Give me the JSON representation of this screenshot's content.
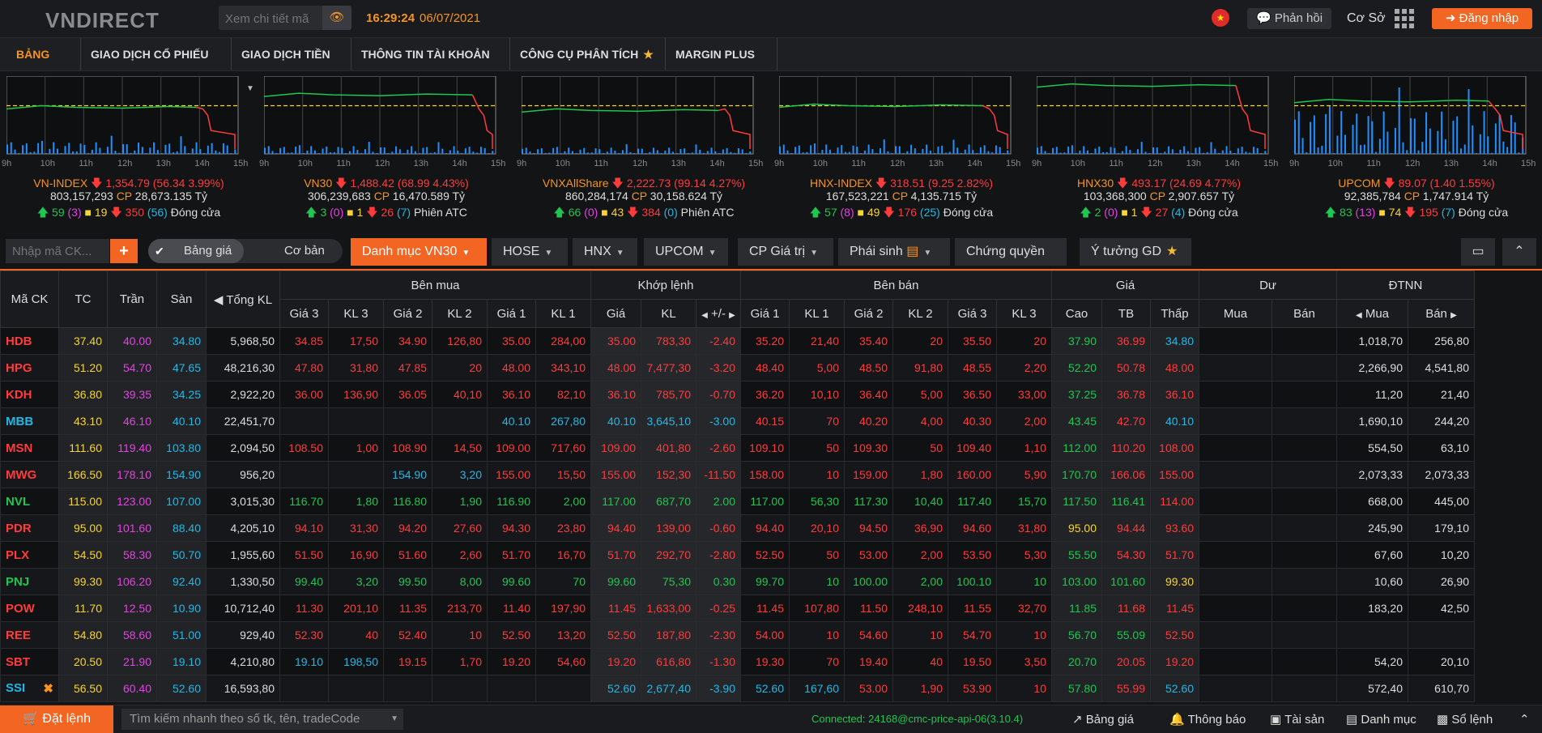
{
  "header": {
    "logo": "VNDIRECT",
    "search_placeholder": "Xem chi tiết mã",
    "time": "16:29:24",
    "date": "06/07/2021",
    "feedback_label": "Phản hồi",
    "mode_label": "Cơ Sở",
    "login_label": "Đăng nhập",
    "flag_icon": "vietnam-flag-icon"
  },
  "menu": [
    {
      "label": "BẢNG GIÁ",
      "active": true
    },
    {
      "label": "GIAO DỊCH CỔ PHIẾU"
    },
    {
      "label": "GIAO DỊCH TIỀN"
    },
    {
      "label": "THÔNG TIN TÀI KHOẢN"
    },
    {
      "label": "CÔNG CỤ PHÂN TÍCH"
    },
    {
      "label": "MARGIN PLUS"
    }
  ],
  "indices": [
    {
      "name": "VN-INDEX",
      "value": "1,354.79 (56.34 3.99%)",
      "vol": "803,157,293",
      "vol_unit": "CP",
      "amt": "28,673.135 Tỷ",
      "up": "59",
      "up_ceil": "(3)",
      "flat": "19",
      "down": "350",
      "down_floor": "(56)",
      "status": "Đóng cửa"
    },
    {
      "name": "VN30",
      "value": "1,488.42 (68.99 4.43%)",
      "vol": "306,239,683",
      "vol_unit": "CP",
      "amt": "16,470.589 Tỷ",
      "up": "3",
      "up_ceil": "(0)",
      "flat": "1",
      "down": "26",
      "down_floor": "(7)",
      "status": "Phiên ATC"
    },
    {
      "name": "VNXAllShare",
      "value": "2,222.73 (99.14 4.27%)",
      "vol": "860,284,174",
      "vol_unit": "CP",
      "amt": "30,158.624 Tỷ",
      "up": "66",
      "up_ceil": "(0)",
      "flat": "43",
      "down": "384",
      "down_floor": "(0)",
      "status": "Phiên ATC"
    },
    {
      "name": "HNX-INDEX",
      "value": "318.51 (9.25 2.82%)",
      "vol": "167,523,221",
      "vol_unit": "CP",
      "amt": "4,135.715 Tỷ",
      "up": "57",
      "up_ceil": "(8)",
      "flat": "49",
      "down": "176",
      "down_floor": "(25)",
      "status": "Đóng cửa"
    },
    {
      "name": "HNX30",
      "value": "493.17 (24.69 4.77%)",
      "vol": "103,368,300",
      "vol_unit": "CP",
      "amt": "2,907.657 Tỷ",
      "up": "2",
      "up_ceil": "(0)",
      "flat": "1",
      "down": "27",
      "down_floor": "(4)",
      "status": "Đóng cửa"
    },
    {
      "name": "UPCOM",
      "value": "89.07 (1.40 1.55%)",
      "vol": "92,385,784",
      "vol_unit": "CP",
      "amt": "1,747.914 Tỷ",
      "up": "83",
      "up_ceil": "(13)",
      "flat": "74",
      "down": "195",
      "down_floor": "(7)",
      "status": "Đóng cửa"
    }
  ],
  "hours": [
    "9h",
    "10h",
    "11h",
    "12h",
    "13h",
    "14h",
    "15h"
  ],
  "toolbar": {
    "ck_placeholder": "Nhập mã CK...",
    "toggle_on": "Bảng giá",
    "toggle_off": "Cơ bản",
    "tabs": [
      "Danh mục VN30",
      "HOSE",
      "HNX",
      "UPCOM",
      "CP Giá trị",
      "Phái sinh",
      "Chứng quyền",
      "Ý tưởng GD"
    ]
  },
  "board": {
    "group_headers": {
      "ben_mua": "Bên mua",
      "khop_lenh": "Khớp lệnh",
      "ben_ban": "Bên bán",
      "gia": "Giá",
      "du": "Dư",
      "dtnn": "ĐTNN"
    },
    "col_headers": {
      "ma": "Mã CK",
      "tc": "TC",
      "tran": "Trần",
      "san": "Sàn",
      "tkl": "Tổng KL",
      "g3": "Giá 3",
      "kl3": "KL 3",
      "g2": "Giá 2",
      "kl2": "KL 2",
      "g1": "Giá 1",
      "kl1": "KL 1",
      "gia": "Giá",
      "kl": "KL",
      "pm": "+/-",
      "cao": "Cao",
      "tb": "TB",
      "thap": "Thấp",
      "mua": "Mua",
      "ban": "Bán"
    },
    "rows": [
      {
        "ma": "HDB",
        "c": "r",
        "tc": "37.40",
        "tran": "40.00",
        "san": "34.80",
        "tkl": "5,968,50",
        "b": [
          [
            "34.85",
            "17,50",
            "r"
          ],
          [
            "34.90",
            "126,80",
            "r"
          ],
          [
            "35.00",
            "284,00",
            "r"
          ]
        ],
        "k": [
          "35.00",
          "783,30",
          "-2.40",
          "r"
        ],
        "s": [
          [
            "35.20",
            "21,40",
            "r"
          ],
          [
            "35.40",
            "20",
            "r"
          ],
          [
            "35.50",
            "20",
            "r"
          ]
        ],
        "h": [
          "37.90",
          "g"
        ],
        "t": [
          "36.99",
          "r"
        ],
        "l": [
          "34.80",
          "c"
        ],
        "dm": "",
        "db": "",
        "nm": "1,018,70",
        "nb": "256,80"
      },
      {
        "ma": "HPG",
        "c": "r",
        "tc": "51.20",
        "tran": "54.70",
        "san": "47.65",
        "tkl": "48,216,30",
        "b": [
          [
            "47.80",
            "31,80",
            "r"
          ],
          [
            "47.85",
            "20",
            "r"
          ],
          [
            "48.00",
            "343,10",
            "r"
          ]
        ],
        "k": [
          "48.00",
          "7,477,30",
          "-3.20",
          "r"
        ],
        "s": [
          [
            "48.40",
            "5,00",
            "r"
          ],
          [
            "48.50",
            "91,80",
            "r"
          ],
          [
            "48.55",
            "2,20",
            "r"
          ]
        ],
        "h": [
          "52.20",
          "g"
        ],
        "t": [
          "50.78",
          "r"
        ],
        "l": [
          "48.00",
          "r"
        ],
        "dm": "",
        "db": "",
        "nm": "2,266,90",
        "nb": "4,541,80"
      },
      {
        "ma": "KDH",
        "c": "r",
        "tc": "36.80",
        "tran": "39.35",
        "san": "34.25",
        "tkl": "2,922,20",
        "b": [
          [
            "36.00",
            "136,90",
            "r"
          ],
          [
            "36.05",
            "40,10",
            "r"
          ],
          [
            "36.10",
            "82,10",
            "r"
          ]
        ],
        "k": [
          "36.10",
          "785,70",
          "-0.70",
          "r"
        ],
        "s": [
          [
            "36.20",
            "10,10",
            "r"
          ],
          [
            "36.40",
            "5,00",
            "r"
          ],
          [
            "36.50",
            "33,00",
            "r"
          ]
        ],
        "h": [
          "37.25",
          "g"
        ],
        "t": [
          "36.78",
          "r"
        ],
        "l": [
          "36.10",
          "r"
        ],
        "dm": "",
        "db": "",
        "nm": "11,20",
        "nb": "21,40"
      },
      {
        "ma": "MBB",
        "c": "c",
        "tc": "43.10",
        "tran": "46.10",
        "san": "40.10",
        "tkl": "22,451,70",
        "b": [
          [
            "",
            "",
            ""
          ],
          [
            "",
            "",
            ""
          ],
          [
            "40.10",
            "267,80",
            "c"
          ]
        ],
        "k": [
          "40.10",
          "3,645,10",
          "-3.00",
          "c"
        ],
        "s": [
          [
            "40.15",
            "70",
            "r"
          ],
          [
            "40.20",
            "4,00",
            "r"
          ],
          [
            "40.30",
            "2,00",
            "r"
          ]
        ],
        "h": [
          "43.45",
          "g"
        ],
        "t": [
          "42.70",
          "r"
        ],
        "l": [
          "40.10",
          "c"
        ],
        "dm": "",
        "db": "",
        "nm": "1,690,10",
        "nb": "244,20"
      },
      {
        "ma": "MSN",
        "c": "r",
        "tc": "111.60",
        "tran": "119.40",
        "san": "103.80",
        "tkl": "2,094,50",
        "b": [
          [
            "108.50",
            "1,00",
            "r"
          ],
          [
            "108.90",
            "14,50",
            "r"
          ],
          [
            "109.00",
            "717,60",
            "r"
          ]
        ],
        "k": [
          "109.00",
          "401,80",
          "-2.60",
          "r"
        ],
        "s": [
          [
            "109.10",
            "50",
            "r"
          ],
          [
            "109.30",
            "50",
            "r"
          ],
          [
            "109.40",
            "1,10",
            "r"
          ]
        ],
        "h": [
          "112.00",
          "g"
        ],
        "t": [
          "110.20",
          "r"
        ],
        "l": [
          "108.00",
          "r"
        ],
        "dm": "",
        "db": "",
        "nm": "554,50",
        "nb": "63,10"
      },
      {
        "ma": "MWG",
        "c": "r",
        "tc": "166.50",
        "tran": "178.10",
        "san": "154.90",
        "tkl": "956,20",
        "b": [
          [
            "",
            "",
            ""
          ],
          [
            "154.90",
            "3,20",
            "c"
          ],
          [
            "155.00",
            "15,50",
            "r"
          ]
        ],
        "k": [
          "155.00",
          "152,30",
          "-11.50",
          "r"
        ],
        "s": [
          [
            "158.00",
            "10",
            "r"
          ],
          [
            "159.00",
            "1,80",
            "r"
          ],
          [
            "160.00",
            "5,90",
            "r"
          ]
        ],
        "h": [
          "170.70",
          "g"
        ],
        "t": [
          "166.06",
          "r"
        ],
        "l": [
          "155.00",
          "r"
        ],
        "dm": "",
        "db": "",
        "nm": "2,073,33",
        "nb": "2,073,33"
      },
      {
        "ma": "NVL",
        "c": "g",
        "tc": "115.00",
        "tran": "123.00",
        "san": "107.00",
        "tkl": "3,015,30",
        "b": [
          [
            "116.70",
            "1,80",
            "g"
          ],
          [
            "116.80",
            "1,90",
            "g"
          ],
          [
            "116.90",
            "2,00",
            "g"
          ]
        ],
        "k": [
          "117.00",
          "687,70",
          "2.00",
          "g"
        ],
        "s": [
          [
            "117.00",
            "56,30",
            "g"
          ],
          [
            "117.30",
            "10,40",
            "g"
          ],
          [
            "117.40",
            "15,70",
            "g"
          ]
        ],
        "h": [
          "117.50",
          "g"
        ],
        "t": [
          "116.41",
          "g"
        ],
        "l": [
          "114.00",
          "r"
        ],
        "dm": "",
        "db": "",
        "nm": "668,00",
        "nb": "445,00"
      },
      {
        "ma": "PDR",
        "c": "r",
        "tc": "95.00",
        "tran": "101.60",
        "san": "88.40",
        "tkl": "4,205,10",
        "b": [
          [
            "94.10",
            "31,30",
            "r"
          ],
          [
            "94.20",
            "27,60",
            "r"
          ],
          [
            "94.30",
            "23,80",
            "r"
          ]
        ],
        "k": [
          "94.40",
          "139,00",
          "-0.60",
          "r"
        ],
        "s": [
          [
            "94.40",
            "20,10",
            "r"
          ],
          [
            "94.50",
            "36,90",
            "r"
          ],
          [
            "94.60",
            "31,80",
            "r"
          ]
        ],
        "h": [
          "95.00",
          "y"
        ],
        "t": [
          "94.44",
          "r"
        ],
        "l": [
          "93.60",
          "r"
        ],
        "dm": "",
        "db": "",
        "nm": "245,90",
        "nb": "179,10"
      },
      {
        "ma": "PLX",
        "c": "r",
        "tc": "54.50",
        "tran": "58.30",
        "san": "50.70",
        "tkl": "1,955,60",
        "b": [
          [
            "51.50",
            "16,90",
            "r"
          ],
          [
            "51.60",
            "2,60",
            "r"
          ],
          [
            "51.70",
            "16,70",
            "r"
          ]
        ],
        "k": [
          "51.70",
          "292,70",
          "-2.80",
          "r"
        ],
        "s": [
          [
            "52.50",
            "50",
            "r"
          ],
          [
            "53.00",
            "2,00",
            "r"
          ],
          [
            "53.50",
            "5,30",
            "r"
          ]
        ],
        "h": [
          "55.50",
          "g"
        ],
        "t": [
          "54.30",
          "r"
        ],
        "l": [
          "51.70",
          "r"
        ],
        "dm": "",
        "db": "",
        "nm": "67,60",
        "nb": "10,20"
      },
      {
        "ma": "PNJ",
        "c": "g",
        "tc": "99.30",
        "tran": "106.20",
        "san": "92.40",
        "tkl": "1,330,50",
        "b": [
          [
            "99.40",
            "3,20",
            "g"
          ],
          [
            "99.50",
            "8,00",
            "g"
          ],
          [
            "99.60",
            "70",
            "g"
          ]
        ],
        "k": [
          "99.60",
          "75,30",
          "0.30",
          "g"
        ],
        "s": [
          [
            "99.70",
            "10",
            "g"
          ],
          [
            "100.00",
            "2,00",
            "g"
          ],
          [
            "100.10",
            "10",
            "g"
          ]
        ],
        "h": [
          "103.00",
          "g"
        ],
        "t": [
          "101.60",
          "g"
        ],
        "l": [
          "99.30",
          "y"
        ],
        "dm": "",
        "db": "",
        "nm": "10,60",
        "nb": "26,90"
      },
      {
        "ma": "POW",
        "c": "r",
        "tc": "11.70",
        "tran": "12.50",
        "san": "10.90",
        "tkl": "10,712,40",
        "b": [
          [
            "11.30",
            "201,10",
            "r"
          ],
          [
            "11.35",
            "213,70",
            "r"
          ],
          [
            "11.40",
            "197,90",
            "r"
          ]
        ],
        "k": [
          "11.45",
          "1,633,00",
          "-0.25",
          "r"
        ],
        "s": [
          [
            "11.45",
            "107,80",
            "r"
          ],
          [
            "11.50",
            "248,10",
            "r"
          ],
          [
            "11.55",
            "32,70",
            "r"
          ]
        ],
        "h": [
          "11.85",
          "g"
        ],
        "t": [
          "11.68",
          "r"
        ],
        "l": [
          "11.45",
          "r"
        ],
        "dm": "",
        "db": "",
        "nm": "183,20",
        "nb": "42,50"
      },
      {
        "ma": "REE",
        "c": "r",
        "tc": "54.80",
        "tran": "58.60",
        "san": "51.00",
        "tkl": "929,40",
        "b": [
          [
            "52.30",
            "40",
            "r"
          ],
          [
            "52.40",
            "10",
            "r"
          ],
          [
            "52.50",
            "13,20",
            "r"
          ]
        ],
        "k": [
          "52.50",
          "187,80",
          "-2.30",
          "r"
        ],
        "s": [
          [
            "54.00",
            "10",
            "r"
          ],
          [
            "54.60",
            "10",
            "r"
          ],
          [
            "54.70",
            "10",
            "r"
          ]
        ],
        "h": [
          "56.70",
          "g"
        ],
        "t": [
          "55.09",
          "g"
        ],
        "l": [
          "52.50",
          "r"
        ],
        "dm": "",
        "db": "",
        "nm": "",
        "nb": ""
      },
      {
        "ma": "SBT",
        "c": "r",
        "tc": "20.50",
        "tran": "21.90",
        "san": "19.10",
        "tkl": "4,210,80",
        "b": [
          [
            "19.10",
            "198,50",
            "c"
          ],
          [
            "19.15",
            "1,70",
            "r"
          ],
          [
            "19.20",
            "54,60",
            "r"
          ]
        ],
        "k": [
          "19.20",
          "616,80",
          "-1.30",
          "r"
        ],
        "s": [
          [
            "19.30",
            "70",
            "r"
          ],
          [
            "19.40",
            "40",
            "r"
          ],
          [
            "19.50",
            "3,50",
            "r"
          ]
        ],
        "h": [
          "20.70",
          "g"
        ],
        "t": [
          "20.05",
          "r"
        ],
        "l": [
          "19.20",
          "r"
        ],
        "dm": "",
        "db": "",
        "nm": "54,20",
        "nb": "20,10"
      },
      {
        "ma": "SSI",
        "c": "c",
        "tc": "56.50",
        "tran": "60.40",
        "san": "52.60",
        "tkl": "16,593,80",
        "b": [
          [
            "",
            "",
            ""
          ],
          [
            "",
            "",
            ""
          ],
          [
            "",
            "",
            ""
          ]
        ],
        "k": [
          "52.60",
          "2,677,40",
          "-3.90",
          "c"
        ],
        "s": [
          [
            "52.60",
            "167,60",
            "c"
          ],
          [
            "53.00",
            "1,90",
            "r"
          ],
          [
            "53.90",
            "10",
            "r"
          ]
        ],
        "h": [
          "57.80",
          "g"
        ],
        "t": [
          "55.99",
          "r"
        ],
        "l": [
          "52.60",
          "c"
        ],
        "dm": "",
        "db": "",
        "nm": "572,40",
        "nb": "610,70"
      }
    ]
  },
  "bottom": {
    "order_label": "Đặt lệnh",
    "search_placeholder": "Tìm kiếm nhanh theo số tk, tên, tradeCode",
    "connected": "Connected: 24168@cmc-price-api-06(3.10.4)",
    "nav": [
      "Bảng giá",
      "Thông báo",
      "Tài sản",
      "Danh mục",
      "Sổ lệnh"
    ]
  }
}
